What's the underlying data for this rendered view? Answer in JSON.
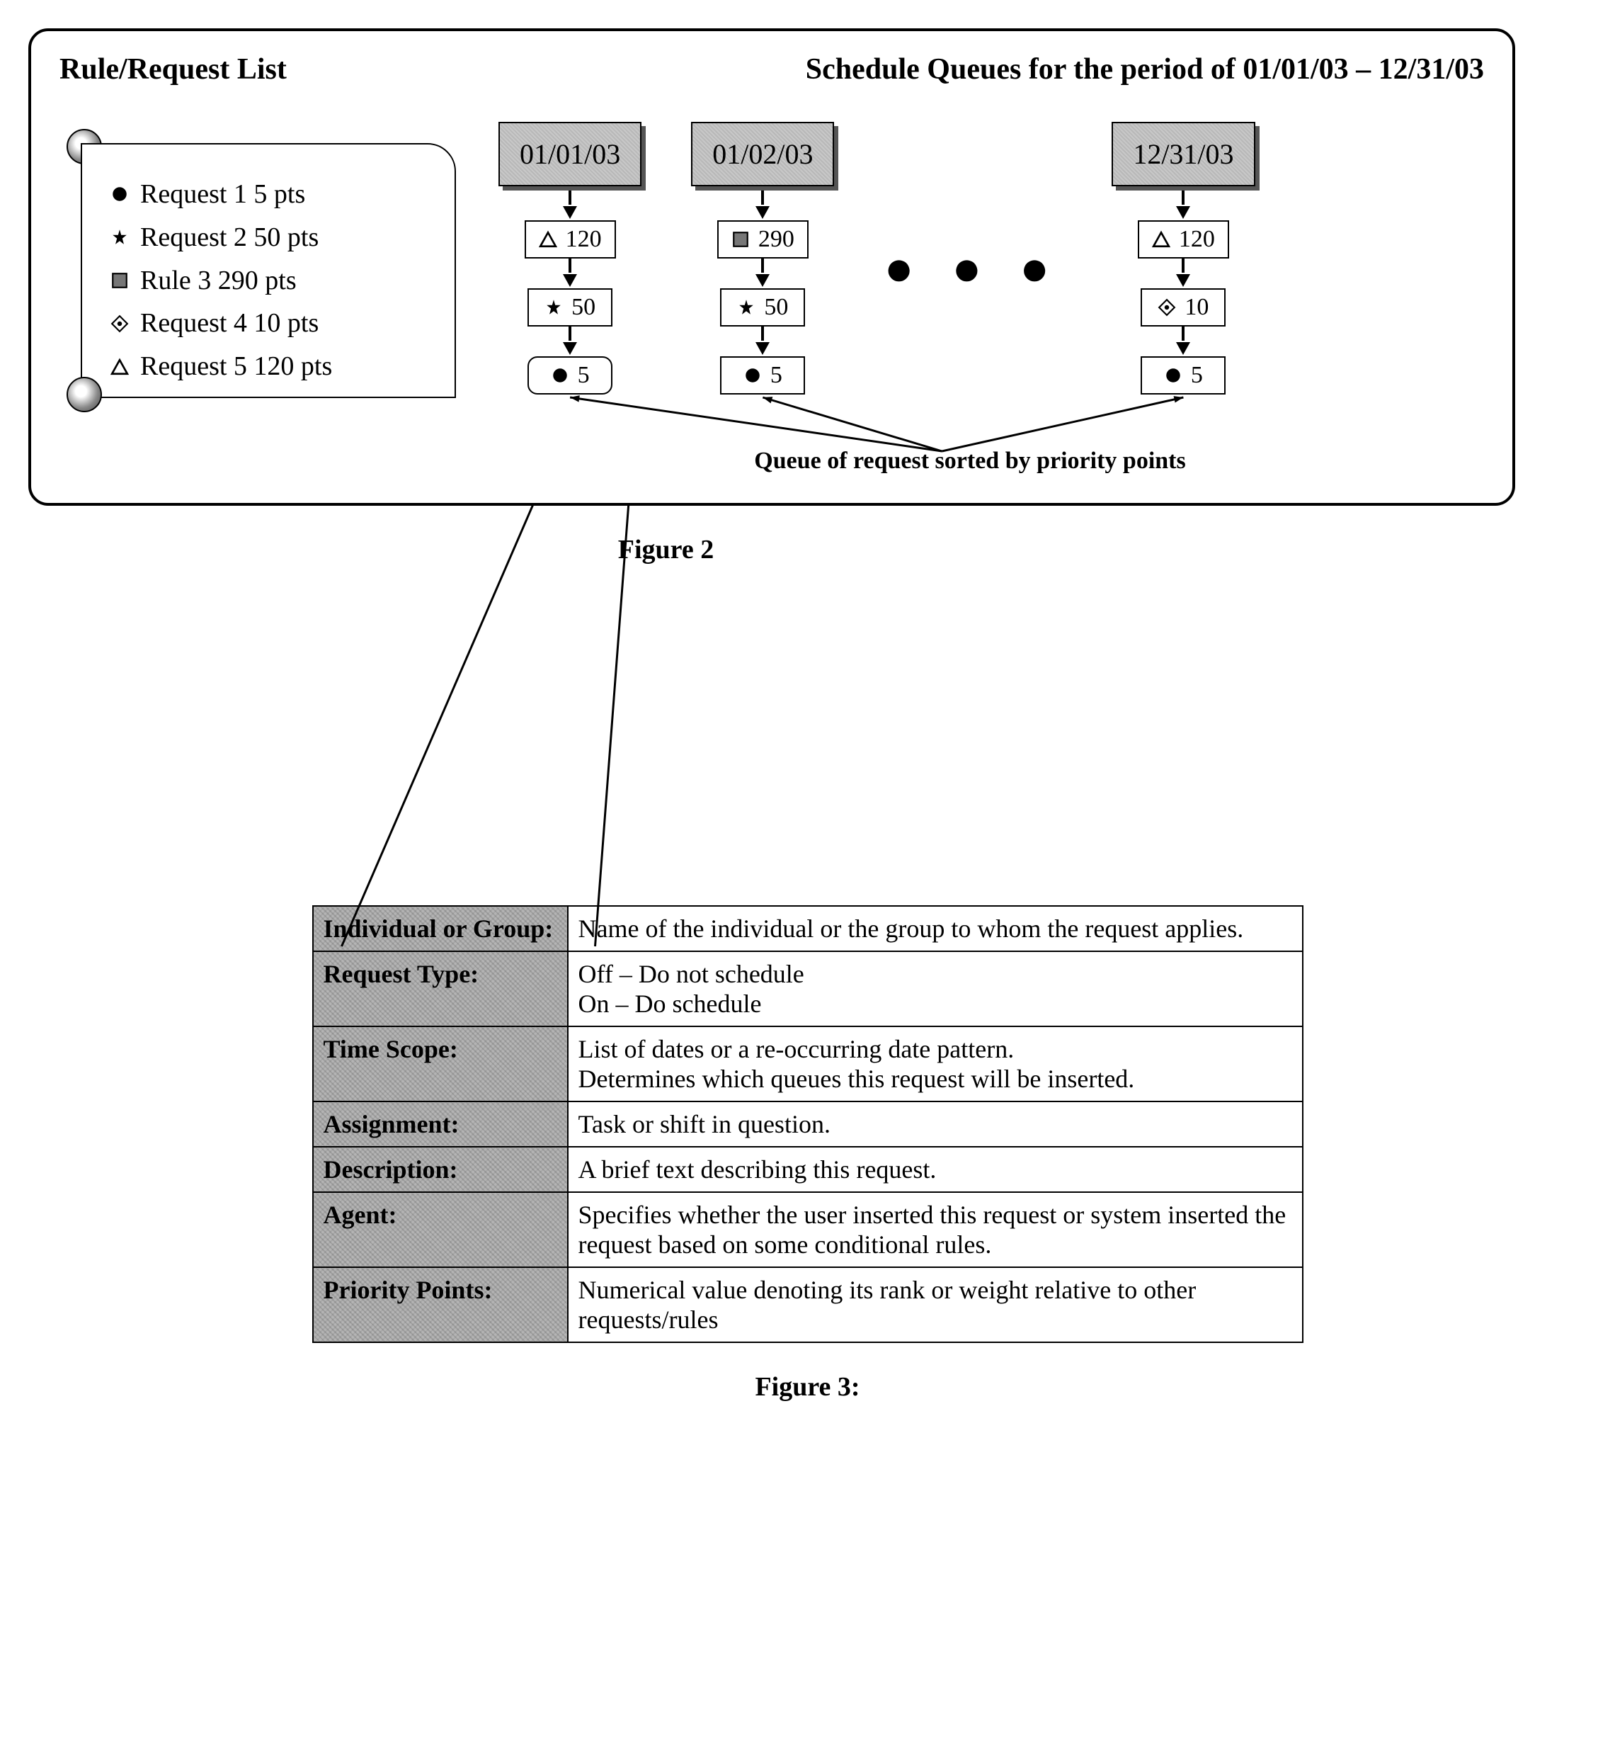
{
  "figure2": {
    "panel_title_left": "Rule/Request List",
    "panel_title_right": "Schedule Queues for the period of 01/01/03 – 12/31/03",
    "figure_label": "Figure 2",
    "scroll_items": [
      {
        "icon": "circle",
        "text": "Request 1 5 pts"
      },
      {
        "icon": "star",
        "text": "Request 2 50 pts"
      },
      {
        "icon": "square",
        "text": "Rule 3 290 pts"
      },
      {
        "icon": "diamond",
        "text": "Request 4 10 pts"
      },
      {
        "icon": "triangle",
        "text": "Request 5 120 pts"
      }
    ],
    "queues": [
      {
        "date": "01/01/03",
        "items": [
          {
            "icon": "triangle",
            "value": "120",
            "rounded": false
          },
          {
            "icon": "star",
            "value": "50",
            "rounded": false
          },
          {
            "icon": "circle",
            "value": "5",
            "rounded": true
          }
        ]
      },
      {
        "date": "01/02/03",
        "items": [
          {
            "icon": "square",
            "value": "290",
            "rounded": false
          },
          {
            "icon": "star",
            "value": "50",
            "rounded": false
          },
          {
            "icon": "circle",
            "value": "5",
            "rounded": false
          }
        ]
      },
      {
        "date": "12/31/03",
        "items": [
          {
            "icon": "triangle",
            "value": "120",
            "rounded": false
          },
          {
            "icon": "diamond",
            "value": "10",
            "rounded": false
          },
          {
            "icon": "circle",
            "value": "5",
            "rounded": false
          }
        ]
      }
    ],
    "ellipsis": "●●●",
    "caption": "Queue of request sorted by priority points",
    "colors": {
      "border": "#000000",
      "date_fill": "#c8c8c8",
      "table_label_fill": "#b5b5b5",
      "background": "#ffffff"
    },
    "fontsizes": {
      "header": 42,
      "list": 38,
      "date": 40,
      "qbox": 34,
      "caption": 34,
      "figure": 38,
      "table": 36
    }
  },
  "figure3": {
    "figure_label": "Figure 3:",
    "rows": [
      {
        "label": "Individual or Group:",
        "desc": "Name of the individual or the group to whom the request applies."
      },
      {
        "label": "Request Type:",
        "desc": "Off – Do not schedule\nOn – Do schedule"
      },
      {
        "label": "Time Scope:",
        "desc": "List of dates or a re-occurring date pattern.\nDetermines which queues this request will be inserted."
      },
      {
        "label": "Assignment:",
        "desc": "Task or shift in question."
      },
      {
        "label": "Description:",
        "desc": "A brief text describing this request."
      },
      {
        "label": "Agent:",
        "desc": "Specifies whether the user inserted this request or system inserted the request based on some conditional rules."
      },
      {
        "label": "Priority Points:",
        "desc": "Numerical value denoting its rank or weight relative to other requests/rules"
      }
    ]
  }
}
